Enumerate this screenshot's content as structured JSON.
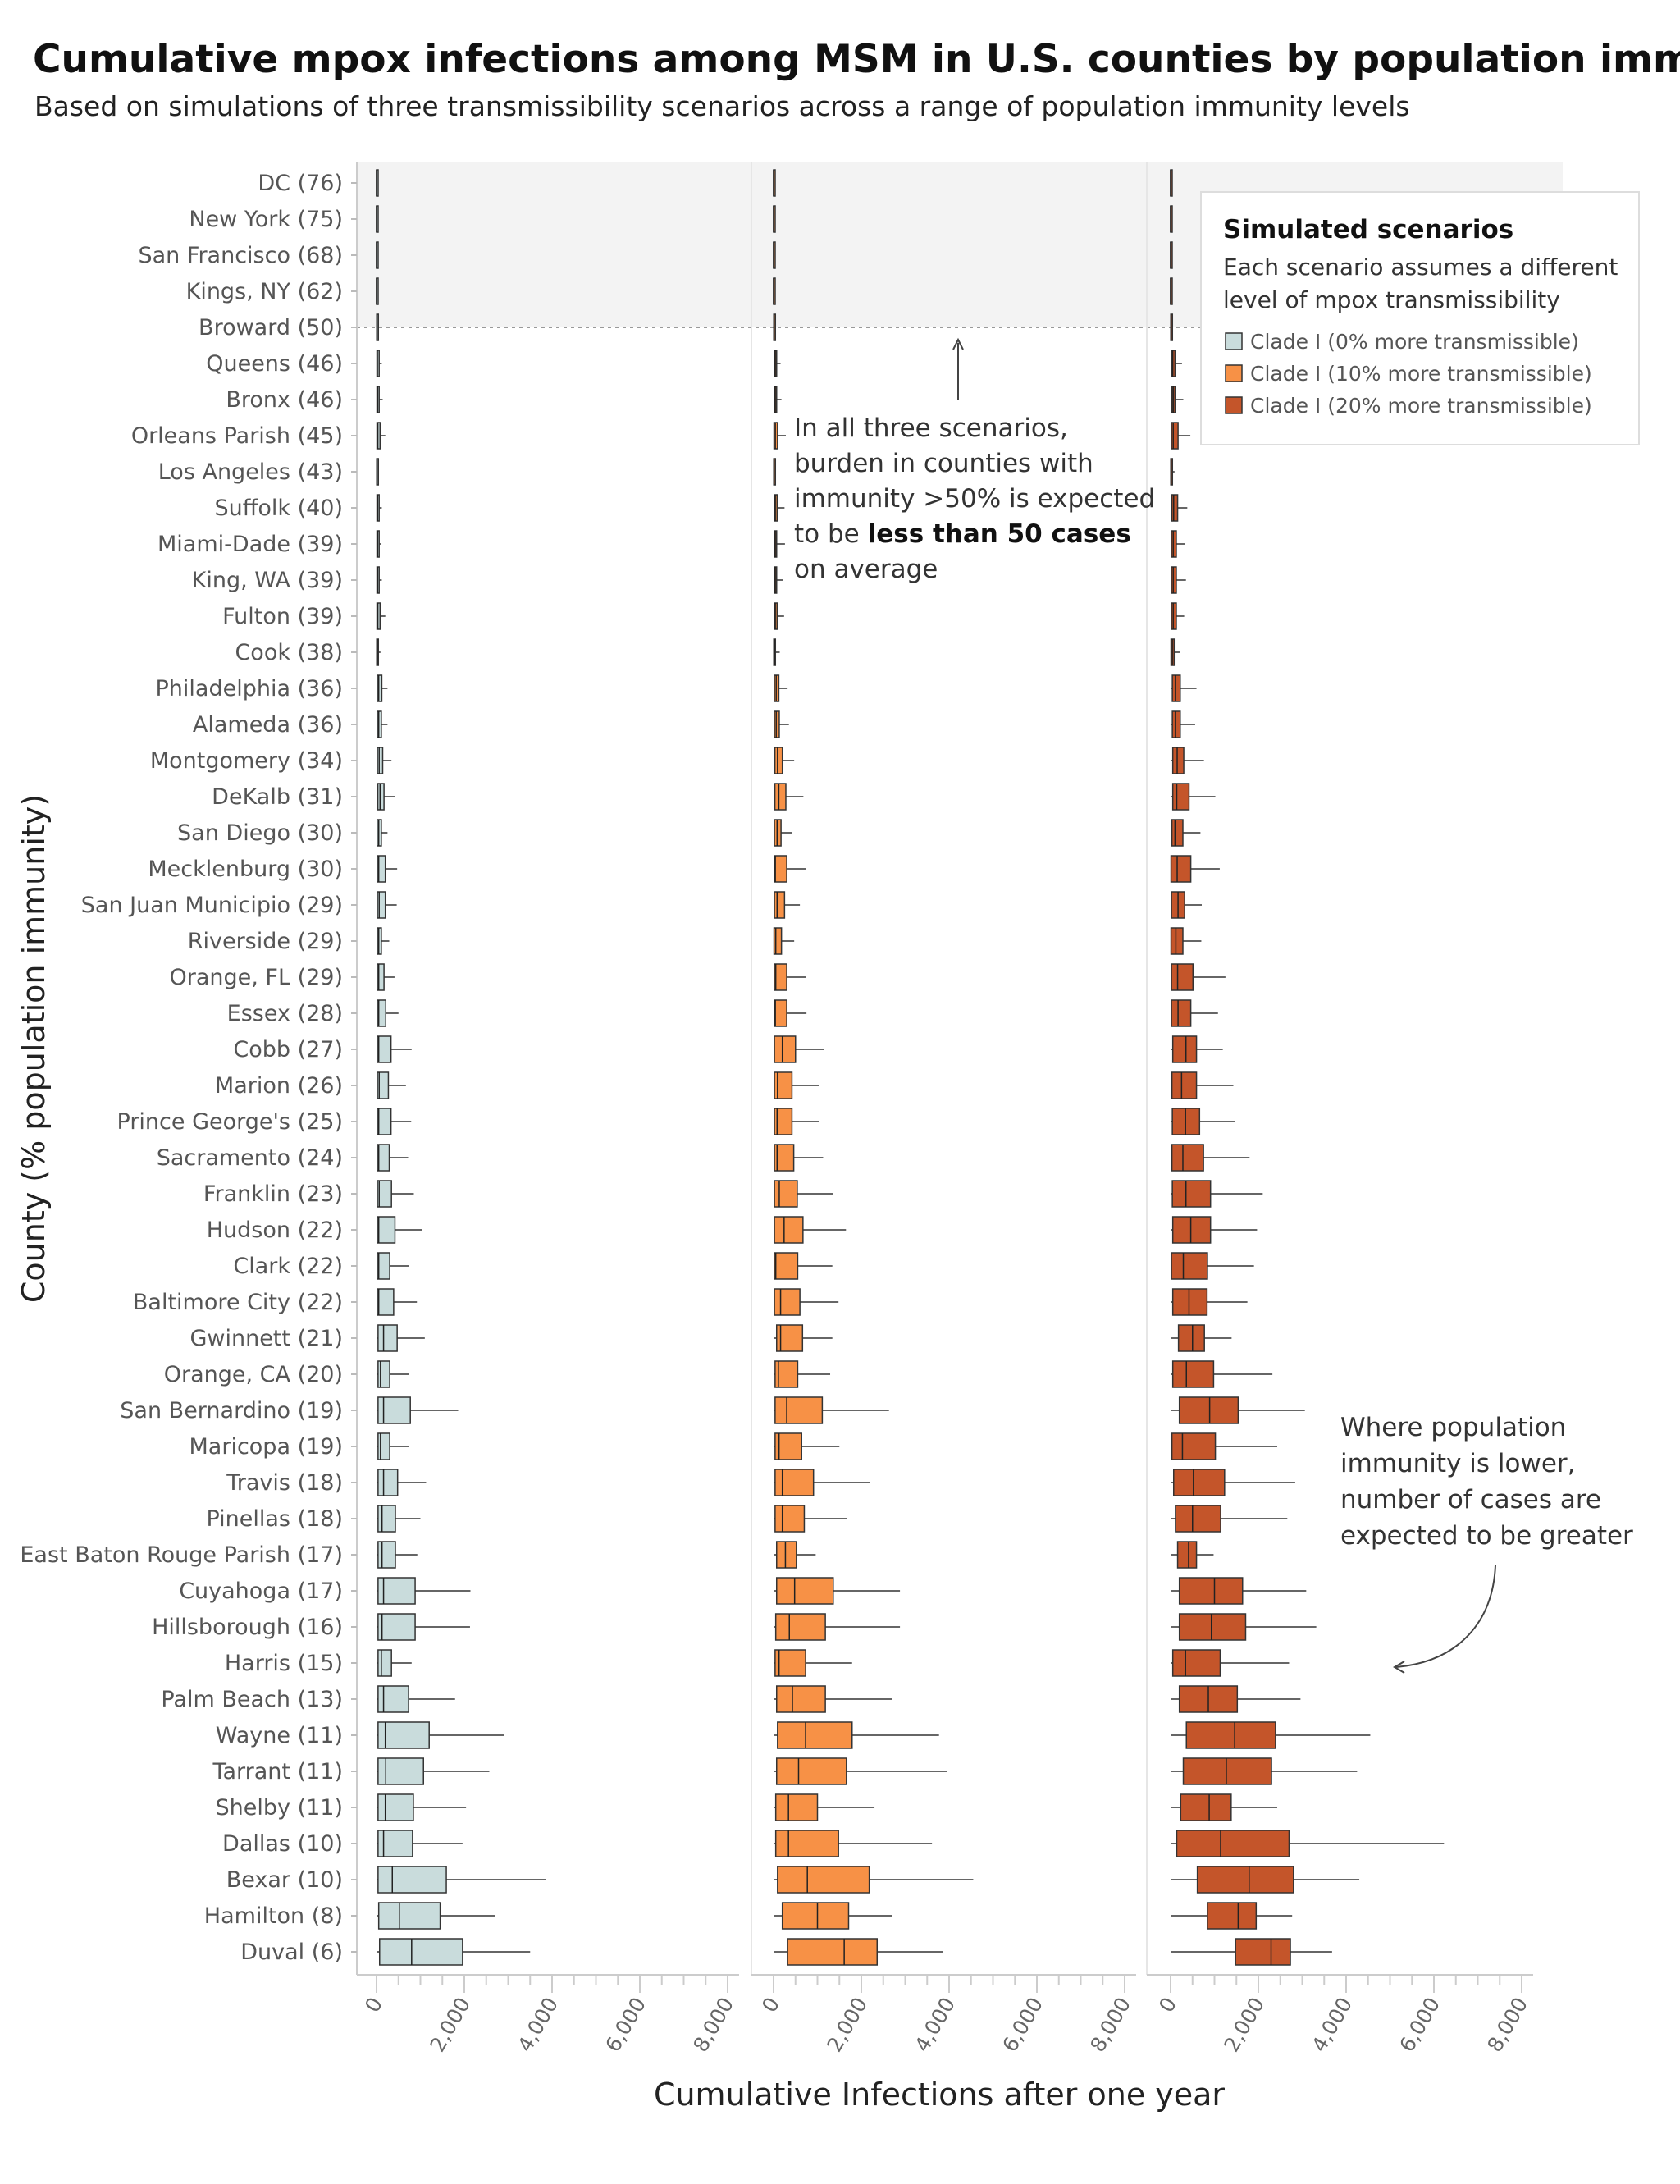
{
  "title": "Cumulative mpox infections among MSM in U.S. counties by population immunity",
  "subtitle": "Based on simulations of three transmissibility scenarios across a range of population immunity levels",
  "legend": {
    "title": "Simulated scenarios",
    "description": [
      "Each scenario assumes a different",
      "level of mpox transmissibility"
    ]
  },
  "annotations": {
    "high_immunity": {
      "lines": [
        "In all three scenarios,",
        "burden in counties with",
        "immunity >50% is expected"
      ],
      "line4_prefix": "to be ",
      "line4_bold": "less than 50 cases",
      "line5": "on average"
    },
    "low_immunity": {
      "lines": [
        "Where population",
        "immunity is lower,",
        "number of cases are",
        "expected to be greater"
      ]
    }
  },
  "chart_data": {
    "type": "box",
    "title": "Cumulative mpox infections among MSM in U.S. counties by population immunity",
    "xlabel": "Cumulative Infections after one year",
    "ylabel": "County (% population immunity)",
    "xlim": [
      0,
      8000
    ],
    "xticks": [
      "0",
      "2,000",
      "4,000",
      "6,000",
      "8,000"
    ],
    "xtick_values": [
      0,
      2000,
      4000,
      6000,
      8000
    ],
    "shaded_region": "immunity >50%",
    "legend_position": "top-right",
    "categories": [
      "DC (76)",
      "New York (75)",
      "San Francisco (68)",
      "Kings, NY (62)",
      "Broward (50)",
      "Queens (46)",
      "Bronx (46)",
      "Orleans Parish (45)",
      "Los Angeles (43)",
      "Suffolk (40)",
      "Miami-Dade (39)",
      "King, WA (39)",
      "Fulton (39)",
      "Cook (38)",
      "Philadelphia (36)",
      "Alameda (36)",
      "Montgomery (34)",
      "DeKalb (31)",
      "San Diego (30)",
      "Mecklenburg (30)",
      "San Juan Municipio (29)",
      "Riverside (29)",
      "Orange, FL (29)",
      "Essex (28)",
      "Cobb (27)",
      "Marion (26)",
      "Prince George's (25)",
      "Sacramento (24)",
      "Franklin (23)",
      "Hudson (22)",
      "Clark (22)",
      "Baltimore City (22)",
      "Gwinnett (21)",
      "Orange, CA (20)",
      "San Bernardino (19)",
      "Maricopa (19)",
      "Travis (18)",
      "Pinellas (18)",
      "East Baton Rouge Parish (17)",
      "Cuyahoga (17)",
      "Hillsborough (16)",
      "Harris (15)",
      "Palm Beach (13)",
      "Wayne (11)",
      "Tarrant (11)",
      "Shelby (11)",
      "Dallas (10)",
      "Bexar (10)",
      "Hamilton (8)",
      "Duval (6)"
    ],
    "box_fields": [
      "min",
      "q1",
      "median",
      "q3",
      "max"
    ],
    "series": [
      {
        "name": "Clade I (0% more transmissible)",
        "color": "#c9dcdc",
        "boxes": [
          [
            0,
            0,
            0,
            0,
            0
          ],
          [
            0,
            0,
            0,
            0,
            0
          ],
          [
            0,
            0,
            0,
            0,
            0
          ],
          [
            0,
            0,
            0,
            0,
            0
          ],
          [
            0,
            5,
            10,
            15,
            20
          ],
          [
            0,
            10,
            20,
            60,
            120
          ],
          [
            0,
            10,
            25,
            60,
            140
          ],
          [
            0,
            10,
            30,
            80,
            200
          ],
          [
            0,
            5,
            10,
            15,
            40
          ],
          [
            0,
            10,
            25,
            60,
            120
          ],
          [
            0,
            10,
            25,
            60,
            110
          ],
          [
            0,
            10,
            25,
            60,
            120
          ],
          [
            0,
            10,
            30,
            80,
            200
          ],
          [
            0,
            5,
            15,
            40,
            90
          ],
          [
            0,
            20,
            50,
            120,
            250
          ],
          [
            0,
            20,
            50,
            110,
            250
          ],
          [
            0,
            20,
            60,
            140,
            340
          ],
          [
            0,
            30,
            80,
            170,
            420
          ],
          [
            0,
            15,
            50,
            110,
            250
          ],
          [
            0,
            20,
            50,
            200,
            470
          ],
          [
            0,
            20,
            60,
            200,
            460
          ],
          [
            0,
            20,
            50,
            110,
            290
          ],
          [
            0,
            20,
            50,
            170,
            410
          ],
          [
            0,
            20,
            50,
            210,
            500
          ],
          [
            0,
            20,
            50,
            330,
            800
          ],
          [
            0,
            20,
            60,
            270,
            670
          ],
          [
            0,
            20,
            50,
            330,
            790
          ],
          [
            0,
            20,
            50,
            290,
            720
          ],
          [
            0,
            20,
            60,
            340,
            850
          ],
          [
            0,
            20,
            50,
            420,
            1040
          ],
          [
            0,
            20,
            50,
            300,
            740
          ],
          [
            0,
            20,
            50,
            390,
            920
          ],
          [
            0,
            35,
            160,
            470,
            1100
          ],
          [
            0,
            35,
            90,
            300,
            730
          ],
          [
            0,
            35,
            160,
            770,
            1860
          ],
          [
            0,
            35,
            90,
            300,
            730
          ],
          [
            0,
            35,
            160,
            480,
            1130
          ],
          [
            0,
            35,
            125,
            430,
            1000
          ],
          [
            0,
            35,
            125,
            430,
            930
          ],
          [
            0,
            35,
            160,
            880,
            2140
          ],
          [
            0,
            35,
            125,
            880,
            2130
          ],
          [
            0,
            35,
            110,
            340,
            800
          ],
          [
            0,
            35,
            160,
            730,
            1790
          ],
          [
            0,
            35,
            200,
            1200,
            2910
          ],
          [
            0,
            35,
            210,
            1070,
            2570
          ],
          [
            0,
            35,
            200,
            840,
            2040
          ],
          [
            0,
            35,
            160,
            820,
            1960
          ],
          [
            0,
            35,
            360,
            1590,
            3860
          ],
          [
            0,
            50,
            520,
            1450,
            2710
          ],
          [
            0,
            70,
            800,
            1960,
            3500
          ]
        ]
      },
      {
        "name": "Clade I (10% more transmissible)",
        "color": "#f79146",
        "boxes": [
          [
            0,
            0,
            0,
            0,
            0
          ],
          [
            0,
            0,
            0,
            0,
            0
          ],
          [
            0,
            0,
            0,
            0,
            0
          ],
          [
            0,
            0,
            0,
            0,
            0
          ],
          [
            0,
            5,
            10,
            15,
            20
          ],
          [
            0,
            20,
            40,
            70,
            160
          ],
          [
            0,
            20,
            40,
            70,
            180
          ],
          [
            0,
            10,
            40,
            90,
            280
          ],
          [
            0,
            5,
            10,
            20,
            40
          ],
          [
            0,
            20,
            40,
            80,
            250
          ],
          [
            0,
            20,
            40,
            70,
            260
          ],
          [
            0,
            20,
            40,
            70,
            210
          ],
          [
            0,
            20,
            40,
            80,
            240
          ],
          [
            0,
            5,
            20,
            40,
            140
          ],
          [
            0,
            20,
            60,
            120,
            320
          ],
          [
            0,
            20,
            60,
            130,
            350
          ],
          [
            0,
            30,
            90,
            200,
            470
          ],
          [
            0,
            30,
            120,
            280,
            680
          ],
          [
            0,
            20,
            80,
            170,
            420
          ],
          [
            0,
            20,
            40,
            300,
            730
          ],
          [
            0,
            20,
            80,
            250,
            600
          ],
          [
            0,
            10,
            50,
            180,
            470
          ],
          [
            0,
            20,
            50,
            300,
            740
          ],
          [
            0,
            20,
            40,
            300,
            750
          ],
          [
            0,
            20,
            200,
            500,
            1150
          ],
          [
            0,
            20,
            90,
            420,
            1040
          ],
          [
            0,
            20,
            80,
            420,
            1040
          ],
          [
            0,
            20,
            80,
            460,
            1130
          ],
          [
            0,
            20,
            130,
            540,
            1350
          ],
          [
            0,
            20,
            240,
            670,
            1650
          ],
          [
            0,
            20,
            50,
            550,
            1340
          ],
          [
            0,
            20,
            160,
            600,
            1480
          ],
          [
            0,
            70,
            160,
            660,
            1340
          ],
          [
            0,
            35,
            110,
            550,
            1290
          ],
          [
            0,
            35,
            300,
            1110,
            2630
          ],
          [
            0,
            35,
            125,
            640,
            1500
          ],
          [
            0,
            35,
            200,
            910,
            2200
          ],
          [
            0,
            35,
            200,
            700,
            1680
          ],
          [
            0,
            70,
            270,
            520,
            960
          ],
          [
            0,
            70,
            480,
            1360,
            2880
          ],
          [
            0,
            50,
            360,
            1180,
            2880
          ],
          [
            0,
            35,
            125,
            730,
            1790
          ],
          [
            0,
            70,
            430,
            1180,
            2700
          ],
          [
            0,
            90,
            730,
            1790,
            3770
          ],
          [
            0,
            70,
            570,
            1660,
            3950
          ],
          [
            0,
            50,
            340,
            1000,
            2300
          ],
          [
            0,
            50,
            340,
            1480,
            3610
          ],
          [
            0,
            90,
            770,
            2180,
            4550
          ],
          [
            0,
            200,
            1000,
            1710,
            2700
          ],
          [
            0,
            320,
            1610,
            2360,
            3860
          ]
        ]
      },
      {
        "name": "Clade I (20% more transmissible)",
        "color": "#c4552a",
        "boxes": [
          [
            0,
            0,
            0,
            0,
            0
          ],
          [
            0,
            0,
            0,
            0,
            0
          ],
          [
            0,
            0,
            0,
            0,
            0
          ],
          [
            0,
            0,
            0,
            0,
            0
          ],
          [
            0,
            5,
            10,
            15,
            20
          ],
          [
            0,
            30,
            50,
            100,
            260
          ],
          [
            0,
            30,
            60,
            100,
            290
          ],
          [
            0,
            20,
            60,
            170,
            450
          ],
          [
            0,
            5,
            10,
            25,
            90
          ],
          [
            0,
            30,
            70,
            160,
            380
          ],
          [
            0,
            20,
            60,
            130,
            330
          ],
          [
            0,
            20,
            60,
            130,
            350
          ],
          [
            0,
            20,
            60,
            130,
            310
          ],
          [
            0,
            10,
            40,
            80,
            220
          ],
          [
            0,
            40,
            110,
            220,
            590
          ],
          [
            0,
            40,
            110,
            220,
            560
          ],
          [
            0,
            50,
            150,
            300,
            760
          ],
          [
            0,
            50,
            140,
            420,
            1020
          ],
          [
            0,
            30,
            100,
            280,
            680
          ],
          [
            0,
            10,
            150,
            460,
            1120
          ],
          [
            0,
            20,
            170,
            320,
            710
          ],
          [
            0,
            10,
            120,
            280,
            700
          ],
          [
            0,
            20,
            160,
            510,
            1250
          ],
          [
            0,
            20,
            170,
            460,
            1080
          ],
          [
            0,
            50,
            350,
            590,
            1190
          ],
          [
            0,
            30,
            250,
            590,
            1430
          ],
          [
            0,
            40,
            340,
            660,
            1470
          ],
          [
            0,
            30,
            280,
            750,
            1800
          ],
          [
            0,
            40,
            350,
            910,
            2100
          ],
          [
            0,
            50,
            460,
            910,
            1970
          ],
          [
            0,
            20,
            290,
            840,
            1900
          ],
          [
            0,
            50,
            420,
            830,
            1750
          ],
          [
            0,
            180,
            500,
            770,
            1390
          ],
          [
            0,
            50,
            360,
            980,
            2320
          ],
          [
            0,
            200,
            890,
            1540,
            3060
          ],
          [
            0,
            30,
            270,
            1020,
            2430
          ],
          [
            0,
            70,
            520,
            1230,
            2840
          ],
          [
            0,
            110,
            500,
            1140,
            2660
          ],
          [
            0,
            160,
            410,
            590,
            980
          ],
          [
            0,
            200,
            1000,
            1640,
            3090
          ],
          [
            0,
            200,
            930,
            1710,
            3320
          ],
          [
            0,
            50,
            340,
            1130,
            2700
          ],
          [
            0,
            200,
            860,
            1520,
            2960
          ],
          [
            0,
            360,
            1460,
            2390,
            4550
          ],
          [
            0,
            290,
            1270,
            2300,
            4250
          ],
          [
            0,
            230,
            880,
            1380,
            2430
          ],
          [
            0,
            140,
            1140,
            2700,
            6230
          ],
          [
            0,
            610,
            1790,
            2800,
            4300
          ],
          [
            0,
            840,
            1540,
            1950,
            2770
          ],
          [
            0,
            1480,
            2290,
            2730,
            3680
          ]
        ]
      }
    ]
  }
}
